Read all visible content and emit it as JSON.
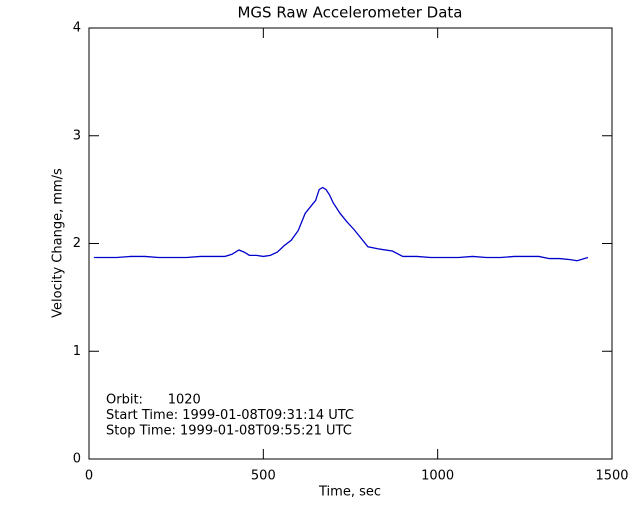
{
  "chart_data": {
    "type": "line",
    "title": "MGS Raw Accelerometer Data",
    "x_label": "Time, sec",
    "y_label": "Velocity Change, mm/s",
    "annotations": [
      "Orbit:      1020",
      "Start Time: 1999-01-08T09:31:14 UTC",
      "Stop Time: 1999-01-08T09:55:21 UTC"
    ],
    "x": [
      14,
      40,
      80,
      120,
      160,
      200,
      240,
      280,
      320,
      360,
      390,
      410,
      430,
      445,
      460,
      480,
      500,
      520,
      540,
      560,
      580,
      600,
      620,
      640,
      650,
      660,
      670,
      680,
      690,
      700,
      720,
      740,
      760,
      780,
      800,
      830,
      870,
      900,
      940,
      980,
      1020,
      1060,
      1100,
      1140,
      1180,
      1220,
      1260,
      1290,
      1320,
      1350,
      1380,
      1400,
      1431
    ],
    "series": [
      {
        "color": "#0000cc",
        "values": [
          1.87,
          1.87,
          1.87,
          1.88,
          1.88,
          1.87,
          1.87,
          1.87,
          1.88,
          1.88,
          1.88,
          1.9,
          1.94,
          1.92,
          1.89,
          1.89,
          1.88,
          1.89,
          1.92,
          1.98,
          2.03,
          2.12,
          2.28,
          2.36,
          2.4,
          2.5,
          2.52,
          2.5,
          2.45,
          2.38,
          2.28,
          2.2,
          2.13,
          2.05,
          1.97,
          1.95,
          1.93,
          1.88,
          1.88,
          1.87,
          1.87,
          1.87,
          1.88,
          1.87,
          1.87,
          1.88,
          1.88,
          1.88,
          1.86,
          1.86,
          1.85,
          1.84,
          1.87
        ]
      }
    ],
    "xlim": [
      0,
      1500
    ],
    "xticks": [
      0,
      500,
      1000,
      1500
    ],
    "ylim": [
      0,
      4
    ],
    "yticks": [
      0,
      1,
      2,
      3,
      4
    ],
    "grid": false
  }
}
